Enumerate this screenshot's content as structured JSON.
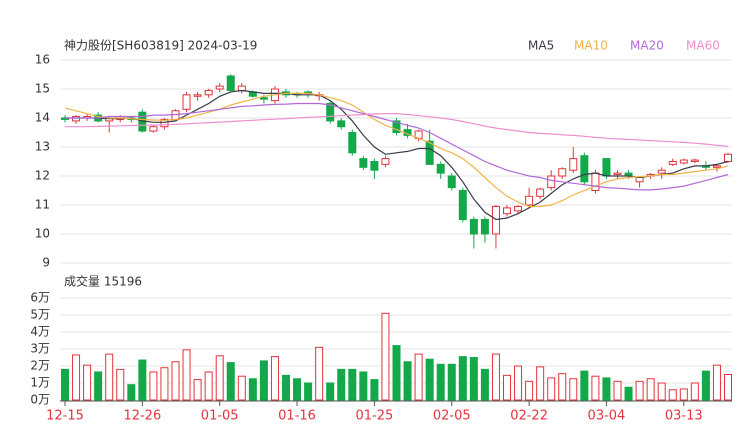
{
  "chart_data": [
    {
      "type": "candlestick",
      "title": "神力股份[SH603819] 2024-03-19",
      "open": [
        14.0,
        13.9,
        14.0,
        14.1,
        13.9,
        13.95,
        14.0,
        14.2,
        13.55,
        13.7,
        13.95,
        14.3,
        14.75,
        14.8,
        15.0,
        15.45,
        14.95,
        14.9,
        14.7,
        14.6,
        14.9,
        14.85,
        14.9,
        14.8,
        14.5,
        13.9,
        13.5,
        12.6,
        12.5,
        12.4,
        13.9,
        13.6,
        13.3,
        13.2,
        12.4,
        12.0,
        11.5,
        10.5,
        10.5,
        10.0,
        10.7,
        10.8,
        11.0,
        11.3,
        11.6,
        12.0,
        12.2,
        12.7,
        11.5,
        12.6,
        12.05,
        12.1,
        11.8,
        12.0,
        12.1,
        12.4,
        12.45,
        12.5,
        12.35,
        12.3,
        12.5
      ],
      "high": [
        14.1,
        14.1,
        14.15,
        14.2,
        14.05,
        14.1,
        14.05,
        14.3,
        13.75,
        14.0,
        14.3,
        14.9,
        14.9,
        15.0,
        15.2,
        15.5,
        15.2,
        14.95,
        14.8,
        15.1,
        15.0,
        14.9,
        14.95,
        14.9,
        14.6,
        14.0,
        13.6,
        12.7,
        12.6,
        12.7,
        14.0,
        13.8,
        13.6,
        13.6,
        12.5,
        12.1,
        11.6,
        10.6,
        10.6,
        11.0,
        11.0,
        11.0,
        11.6,
        11.6,
        12.2,
        12.3,
        13.0,
        12.8,
        12.2,
        12.6,
        12.2,
        12.2,
        12.0,
        12.1,
        12.3,
        12.6,
        12.6,
        12.6,
        12.5,
        12.4,
        12.8
      ],
      "low": [
        13.85,
        13.8,
        13.9,
        13.85,
        13.5,
        13.85,
        13.85,
        13.5,
        13.5,
        13.6,
        13.9,
        14.2,
        14.6,
        14.7,
        14.9,
        14.9,
        14.85,
        14.7,
        14.5,
        14.5,
        14.7,
        14.7,
        14.7,
        14.6,
        13.8,
        13.6,
        12.7,
        12.2,
        11.9,
        12.3,
        13.4,
        13.3,
        13.2,
        12.4,
        11.9,
        11.5,
        10.4,
        9.5,
        9.7,
        9.5,
        10.6,
        10.7,
        10.9,
        11.2,
        11.5,
        11.9,
        12.1,
        11.7,
        11.4,
        11.9,
        11.9,
        11.9,
        11.6,
        11.9,
        11.9,
        12.35,
        12.4,
        12.45,
        12.2,
        12.15,
        12.45
      ],
      "close": [
        13.95,
        14.05,
        14.05,
        13.9,
        14.0,
        14.05,
        13.95,
        13.55,
        13.7,
        13.95,
        14.25,
        14.8,
        14.8,
        14.95,
        15.1,
        14.95,
        15.1,
        14.75,
        14.65,
        15.0,
        14.8,
        14.8,
        14.85,
        14.8,
        13.9,
        13.7,
        12.8,
        12.3,
        12.2,
        12.6,
        13.5,
        13.4,
        13.55,
        12.4,
        12.1,
        11.6,
        10.5,
        10.0,
        10.0,
        10.95,
        10.9,
        10.95,
        11.3,
        11.55,
        12.0,
        12.25,
        12.6,
        11.8,
        12.1,
        12.0,
        12.1,
        12.0,
        11.95,
        12.05,
        12.2,
        12.5,
        12.55,
        12.55,
        12.3,
        12.35,
        12.75
      ],
      "up_color": "#e2343c",
      "down_color": "#13a84a",
      "series": [
        {
          "name": "MA5",
          "color": "#3a3a4a",
          "values": [
            14.0,
            14.0,
            14.0,
            14.0,
            13.98,
            13.98,
            14.0,
            13.9,
            13.85,
            13.85,
            13.9,
            14.1,
            14.3,
            14.5,
            14.75,
            14.9,
            14.95,
            14.9,
            14.85,
            14.85,
            14.85,
            14.8,
            14.8,
            14.8,
            14.6,
            14.3,
            13.9,
            13.4,
            13.0,
            12.75,
            12.8,
            12.85,
            12.95,
            12.95,
            12.7,
            12.3,
            11.8,
            11.2,
            10.75,
            10.5,
            10.55,
            10.7,
            10.9,
            11.1,
            11.4,
            11.7,
            11.9,
            12.05,
            12.1,
            12.0,
            12.0,
            12.0,
            11.95,
            12.0,
            12.05,
            12.1,
            12.25,
            12.35,
            12.35,
            12.4,
            12.5
          ]
        },
        {
          "name": "MA10",
          "color": "#f0b445",
          "values": [
            14.35,
            14.25,
            14.15,
            14.05,
            14.0,
            14.0,
            13.98,
            13.95,
            13.93,
            13.92,
            13.95,
            14.0,
            14.1,
            14.2,
            14.3,
            14.45,
            14.55,
            14.65,
            14.75,
            14.8,
            14.85,
            14.85,
            14.85,
            14.8,
            14.7,
            14.6,
            14.45,
            14.2,
            13.95,
            13.75,
            13.6,
            13.45,
            13.3,
            13.15,
            12.95,
            12.8,
            12.6,
            12.3,
            11.95,
            11.6,
            11.3,
            11.1,
            10.95,
            10.95,
            11.0,
            11.15,
            11.35,
            11.5,
            11.65,
            11.8,
            11.9,
            11.95,
            11.98,
            12.0,
            12.05,
            12.05,
            12.1,
            12.15,
            12.2,
            12.25,
            12.35
          ]
        },
        {
          "name": "MA20",
          "color": "#b06ad8",
          "values": [
            14.0,
            14.0,
            14.0,
            14.0,
            14.05,
            14.05,
            14.05,
            14.05,
            14.1,
            14.1,
            14.12,
            14.15,
            14.2,
            14.25,
            14.3,
            14.35,
            14.4,
            14.42,
            14.45,
            14.47,
            14.48,
            14.5,
            14.5,
            14.5,
            14.45,
            14.35,
            14.25,
            14.15,
            14.05,
            13.95,
            13.85,
            13.75,
            13.65,
            13.5,
            13.3,
            13.1,
            12.9,
            12.7,
            12.5,
            12.35,
            12.2,
            12.1,
            12.0,
            11.95,
            11.85,
            11.8,
            11.75,
            11.7,
            11.65,
            11.6,
            11.58,
            11.55,
            11.52,
            11.52,
            11.55,
            11.6,
            11.65,
            11.75,
            11.85,
            11.95,
            12.05
          ]
        },
        {
          "name": "MA60",
          "color": "#ee8fcf",
          "values": [
            13.7,
            13.7,
            13.7,
            13.71,
            13.72,
            13.73,
            13.74,
            13.75,
            13.76,
            13.77,
            13.78,
            13.8,
            13.82,
            13.84,
            13.86,
            13.88,
            13.9,
            13.92,
            13.94,
            13.96,
            13.98,
            14.0,
            14.02,
            14.04,
            14.06,
            14.08,
            14.1,
            14.12,
            14.14,
            14.15,
            14.15,
            14.12,
            14.08,
            14.04,
            14.0,
            13.95,
            13.88,
            13.8,
            13.72,
            13.65,
            13.6,
            13.55,
            13.5,
            13.47,
            13.45,
            13.42,
            13.4,
            13.37,
            13.33,
            13.3,
            13.28,
            13.26,
            13.24,
            13.22,
            13.2,
            13.18,
            13.16,
            13.13,
            13.1,
            13.06,
            13.02
          ]
        }
      ],
      "ylim": [
        9,
        16
      ],
      "yticks": [
        9,
        10,
        11,
        12,
        13,
        14,
        15,
        16
      ],
      "grid": true
    },
    {
      "type": "bar",
      "title": "成交量 15196",
      "categories": [
        "12-15",
        null,
        null,
        null,
        null,
        null,
        null,
        "12-26",
        null,
        null,
        null,
        null,
        null,
        null,
        "01-05",
        null,
        null,
        null,
        null,
        null,
        null,
        "01-16",
        null,
        null,
        null,
        null,
        null,
        null,
        "01-25",
        null,
        null,
        null,
        null,
        null,
        null,
        "02-05",
        null,
        null,
        null,
        null,
        null,
        null,
        "02-22",
        null,
        null,
        null,
        null,
        null,
        null,
        "03-04",
        null,
        null,
        null,
        null,
        null,
        null,
        "03-13",
        null,
        null,
        null,
        null
      ],
      "values": [
        1.8,
        2.65,
        2.05,
        1.65,
        2.7,
        1.8,
        0.9,
        2.35,
        1.65,
        1.9,
        2.25,
        2.95,
        1.2,
        1.65,
        2.6,
        2.2,
        1.4,
        1.25,
        2.3,
        2.55,
        1.45,
        1.25,
        1.0,
        3.1,
        1.0,
        1.8,
        1.8,
        1.65,
        1.2,
        5.1,
        3.2,
        2.25,
        2.7,
        2.4,
        2.1,
        2.1,
        2.55,
        2.5,
        1.8,
        2.7,
        1.45,
        2.0,
        1.1,
        1.95,
        1.3,
        1.55,
        1.25,
        1.7,
        1.4,
        1.3,
        1.1,
        0.75,
        1.1,
        1.25,
        1.0,
        0.6,
        0.65,
        1.0,
        1.7,
        2.05,
        1.5
      ],
      "ylim": [
        0,
        6
      ],
      "yticks": [
        {
          "value": 0,
          "label": "0万"
        },
        {
          "value": 1,
          "label": "1万"
        },
        {
          "value": 2,
          "label": "2万"
        },
        {
          "value": 3,
          "label": "3万"
        },
        {
          "value": 4,
          "label": "4万"
        },
        {
          "value": 5,
          "label": "5万"
        },
        {
          "value": 6,
          "label": "6万"
        }
      ],
      "axis_label_color": "#e2343c"
    }
  ]
}
